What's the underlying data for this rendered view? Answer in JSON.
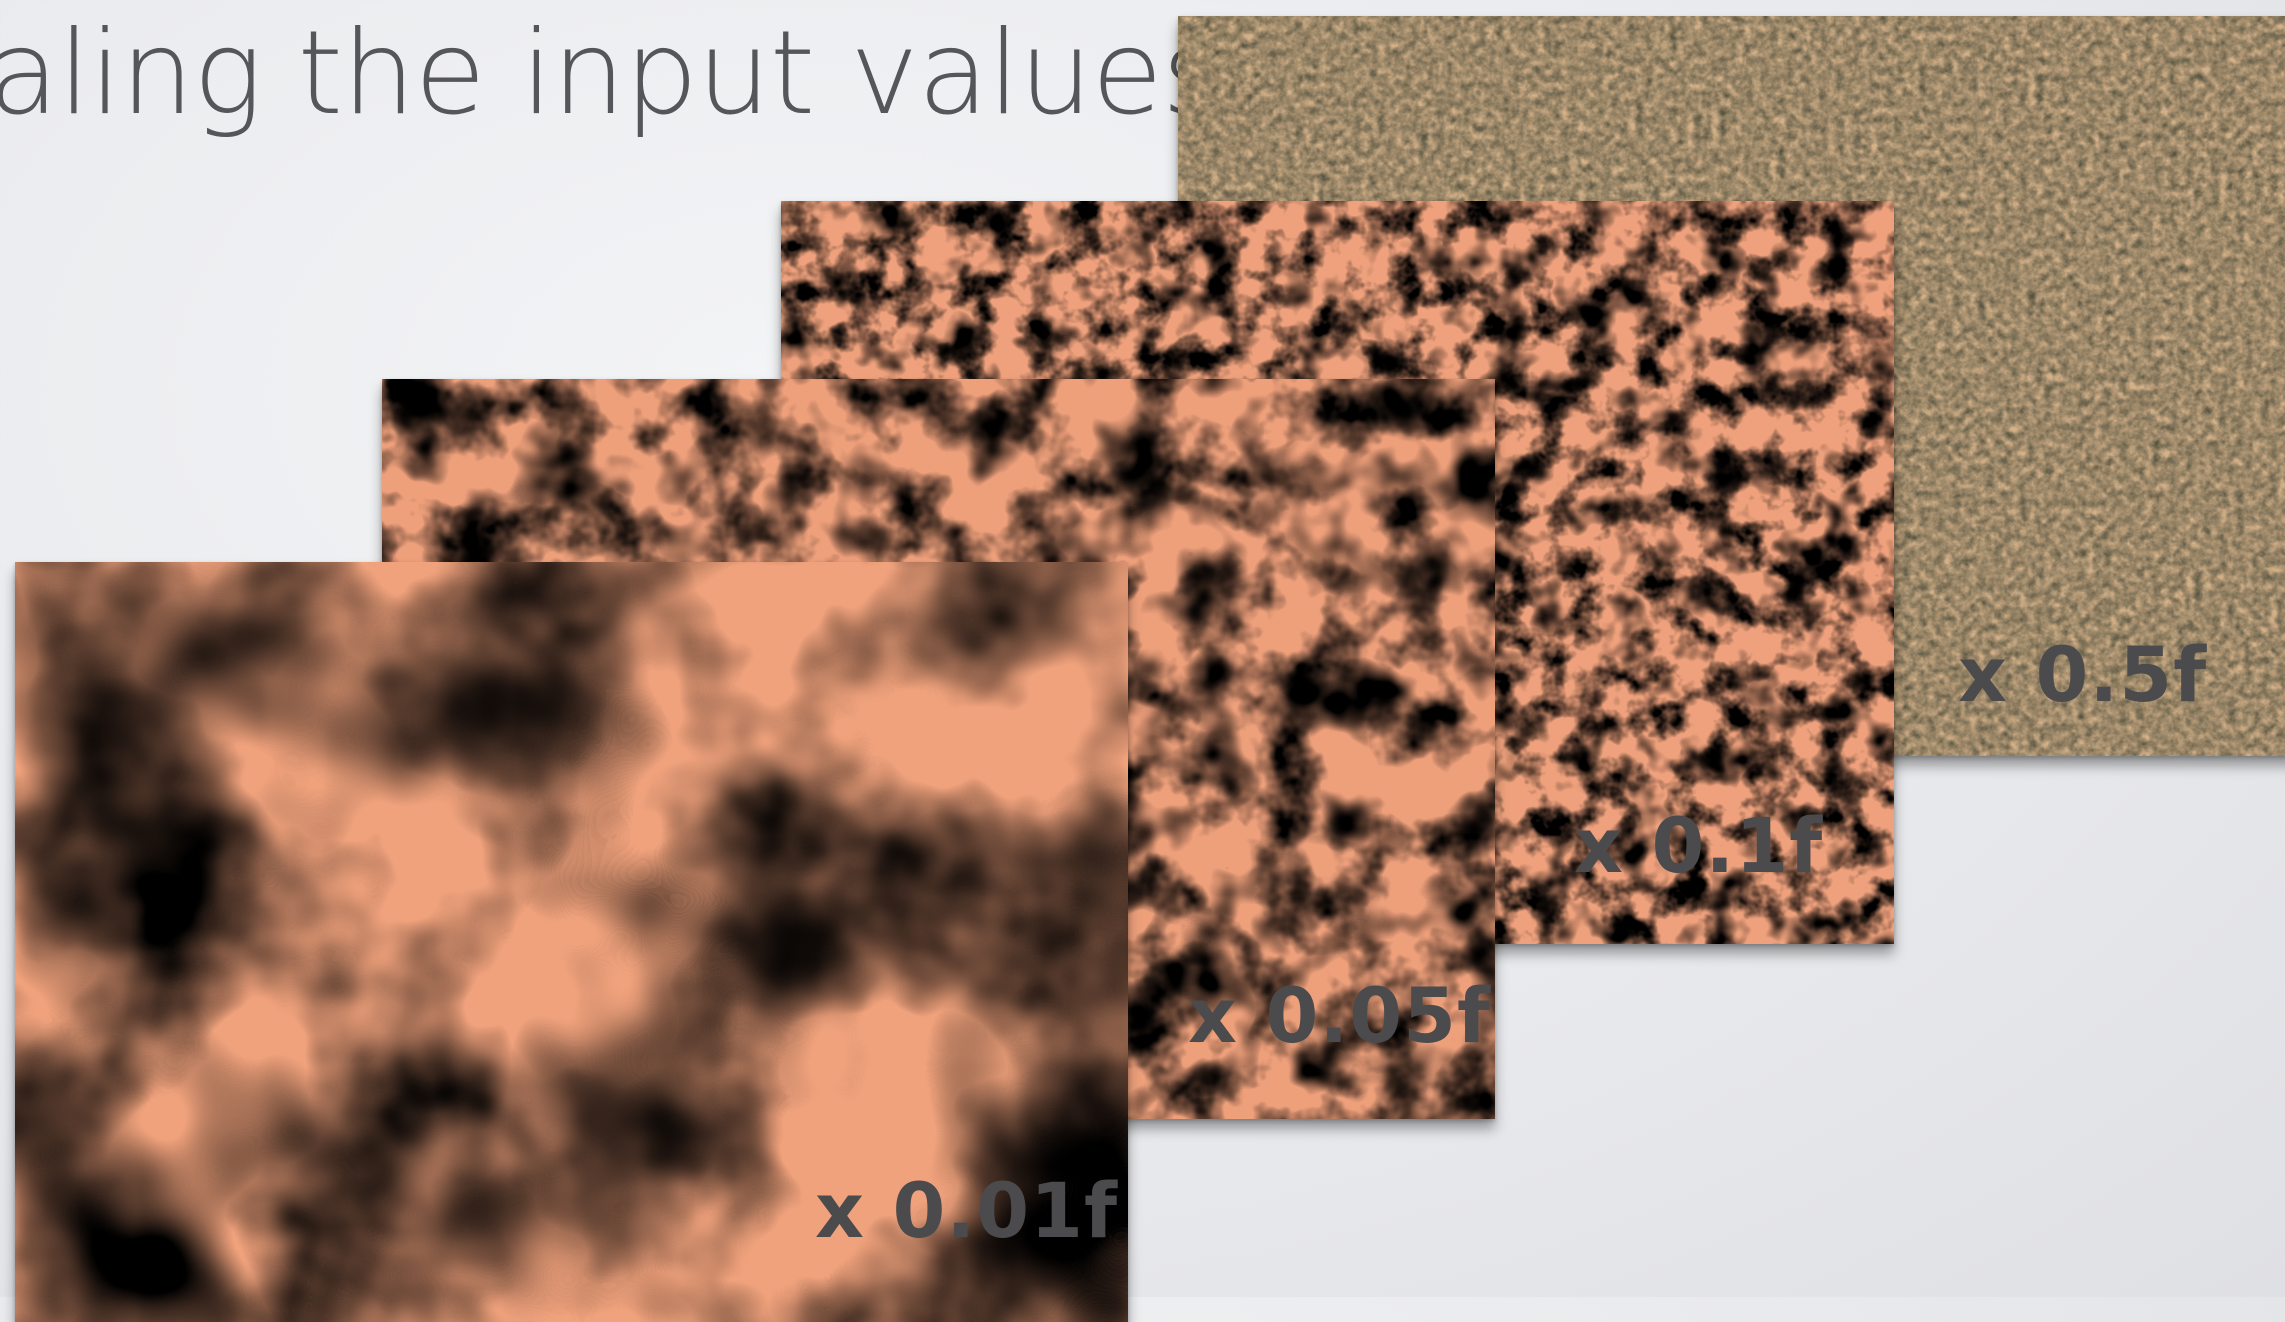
{
  "slide": {
    "title": "aling the input values."
  },
  "panels": [
    {
      "label": "x 0.5f",
      "noise_scale": 0.5
    },
    {
      "label": "x 0.1f",
      "noise_scale": 0.1
    },
    {
      "label": "x 0.05f",
      "noise_scale": 0.05
    },
    {
      "label": "x 0.01f",
      "noise_scale": 0.01
    }
  ],
  "colors": {
    "noise_high": "#f0505a",
    "noise_mid": "#f5a57a",
    "noise_low": "#5ee6b0",
    "label_text": "#4b4b4d",
    "title_text": "#555659"
  }
}
